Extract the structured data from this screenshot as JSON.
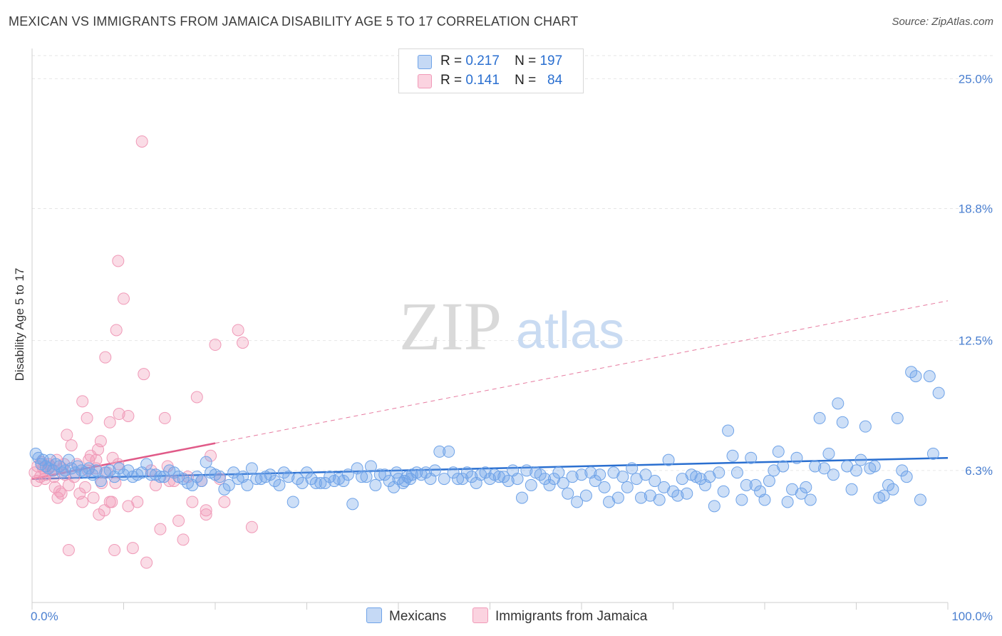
{
  "title": "MEXICAN VS IMMIGRANTS FROM JAMAICA DISABILITY AGE 5 TO 17 CORRELATION CHART",
  "source": "Source: ZipAtlas.com",
  "watermark": {
    "zip": "ZIP",
    "atlas": "atlas"
  },
  "legend": {
    "rows": [
      {
        "r_label": "R =",
        "r_value": "0.217",
        "n_label": "N =",
        "n_value": "197",
        "color": "#6fa3e8"
      },
      {
        "r_label": "R =",
        "r_value": "0.141",
        "n_label": "N =",
        "n_value": "84",
        "color": "#f09ab8"
      }
    ]
  },
  "bottom_legend": {
    "items": [
      {
        "label": "Mexicans",
        "color": "#6fa3e8"
      },
      {
        "label": "Immigrants from Jamaica",
        "color": "#f09ab8"
      }
    ]
  },
  "chart_data": {
    "type": "scatter",
    "title": "MEXICAN VS IMMIGRANTS FROM JAMAICA DISABILITY AGE 5 TO 17 CORRELATION CHART",
    "xlabel": "",
    "ylabel": "Disability Age 5 to 17",
    "xlim": [
      0,
      100
    ],
    "ylim": [
      0,
      26.1
    ],
    "x_tick_labels": [
      "0.0%",
      "100.0%"
    ],
    "y_ticks": [
      6.3,
      12.5,
      18.8,
      25.0
    ],
    "y_tick_labels": [
      "6.3%",
      "12.5%",
      "18.8%",
      "25.0%"
    ],
    "grid": "horizontal dashed",
    "legend_position": "top-center",
    "series": [
      {
        "name": "Mexicans",
        "color": "#6fa3e8",
        "trend": {
          "x": [
            0,
            100
          ],
          "y": [
            5.9,
            6.9
          ],
          "style": "solid",
          "color": "#2a6fd0"
        },
        "points": [
          [
            0.4,
            7.1
          ],
          [
            0.7,
            6.9
          ],
          [
            1.0,
            6.6
          ],
          [
            1.2,
            6.8
          ],
          [
            1.5,
            6.5
          ],
          [
            1.8,
            6.4
          ],
          [
            2.0,
            6.8
          ],
          [
            2.3,
            6.3
          ],
          [
            2.6,
            6.6
          ],
          [
            3.0,
            6.5
          ],
          [
            3.3,
            6.2
          ],
          [
            3.6,
            6.3
          ],
          [
            4.0,
            6.8
          ],
          [
            4.3,
            6.4
          ],
          [
            4.7,
            6.2
          ],
          [
            5.0,
            6.5
          ],
          [
            5.4,
            6.3
          ],
          [
            5.8,
            6.2
          ],
          [
            6.2,
            6.4
          ],
          [
            6.6,
            6.1
          ],
          [
            7.0,
            6.3
          ],
          [
            7.5,
            5.8
          ],
          [
            8.0,
            6.2
          ],
          [
            8.5,
            6.3
          ],
          [
            9.0,
            6.0
          ],
          [
            9.5,
            6.4
          ],
          [
            10.0,
            6.1
          ],
          [
            10.5,
            6.3
          ],
          [
            11.0,
            6.0
          ],
          [
            11.5,
            6.1
          ],
          [
            12.0,
            6.2
          ],
          [
            12.5,
            6.6
          ],
          [
            13.0,
            6.1
          ],
          [
            13.5,
            6.1
          ],
          [
            14.0,
            6.0
          ],
          [
            14.4,
            6.0
          ],
          [
            15.0,
            6.3
          ],
          [
            15.5,
            6.2
          ],
          [
            16.0,
            6.0
          ],
          [
            16.5,
            5.9
          ],
          [
            17.0,
            5.7
          ],
          [
            17.5,
            5.6
          ],
          [
            18.0,
            6.0
          ],
          [
            18.5,
            5.8
          ],
          [
            19.0,
            6.7
          ],
          [
            19.5,
            6.2
          ],
          [
            20.0,
            6.1
          ],
          [
            20.5,
            6.0
          ],
          [
            21.0,
            5.4
          ],
          [
            21.5,
            5.6
          ],
          [
            22.0,
            6.2
          ],
          [
            22.5,
            5.9
          ],
          [
            23.0,
            6.0
          ],
          [
            23.5,
            5.6
          ],
          [
            24.0,
            6.4
          ],
          [
            24.5,
            5.9
          ],
          [
            25.0,
            5.9
          ],
          [
            25.5,
            6.0
          ],
          [
            26.0,
            6.1
          ],
          [
            26.5,
            5.8
          ],
          [
            27.0,
            5.6
          ],
          [
            27.5,
            6.2
          ],
          [
            28.0,
            6.0
          ],
          [
            28.5,
            4.8
          ],
          [
            29.0,
            5.9
          ],
          [
            29.5,
            5.7
          ],
          [
            30.0,
            6.2
          ],
          [
            30.5,
            5.9
          ],
          [
            31.0,
            5.7
          ],
          [
            31.5,
            5.7
          ],
          [
            32.0,
            5.7
          ],
          [
            32.5,
            6.0
          ],
          [
            33.0,
            5.8
          ],
          [
            33.5,
            5.9
          ],
          [
            34.0,
            5.8
          ],
          [
            34.5,
            6.1
          ],
          [
            35.0,
            4.7
          ],
          [
            35.5,
            6.4
          ],
          [
            36.0,
            6.0
          ],
          [
            36.5,
            6.0
          ],
          [
            37.0,
            6.5
          ],
          [
            37.5,
            5.6
          ],
          [
            38.0,
            6.1
          ],
          [
            38.5,
            6.1
          ],
          [
            39.0,
            5.8
          ],
          [
            39.5,
            5.5
          ],
          [
            40.0,
            5.9
          ],
          [
            40.5,
            5.7
          ],
          [
            41.0,
            6.0
          ],
          [
            41.5,
            6.1
          ],
          [
            42.0,
            6.2
          ],
          [
            42.5,
            6.1
          ],
          [
            39.8,
            6.2
          ],
          [
            40.7,
            5.8
          ],
          [
            41.3,
            5.9
          ],
          [
            43.0,
            6.2
          ],
          [
            43.5,
            5.9
          ],
          [
            44.0,
            6.3
          ],
          [
            44.5,
            7.2
          ],
          [
            45.0,
            5.9
          ],
          [
            45.5,
            7.2
          ],
          [
            46.0,
            6.2
          ],
          [
            46.5,
            5.9
          ],
          [
            47.0,
            5.9
          ],
          [
            47.5,
            6.2
          ],
          [
            48.0,
            6.0
          ],
          [
            48.5,
            5.7
          ],
          [
            49.0,
            6.1
          ],
          [
            49.5,
            6.2
          ],
          [
            50.0,
            5.9
          ],
          [
            50.5,
            6.1
          ],
          [
            51.0,
            6.0
          ],
          [
            51.5,
            6.0
          ],
          [
            52.0,
            5.8
          ],
          [
            52.5,
            6.3
          ],
          [
            53.0,
            5.9
          ],
          [
            53.5,
            5.0
          ],
          [
            54.0,
            6.3
          ],
          [
            54.5,
            5.6
          ],
          [
            55.0,
            6.2
          ],
          [
            55.5,
            6.1
          ],
          [
            56.0,
            5.9
          ],
          [
            56.5,
            5.6
          ],
          [
            57.0,
            5.9
          ],
          [
            57.5,
            6.2
          ],
          [
            58.0,
            5.7
          ],
          [
            58.5,
            5.2
          ],
          [
            59.0,
            6.0
          ],
          [
            59.5,
            4.8
          ],
          [
            60.0,
            6.1
          ],
          [
            60.5,
            5.1
          ],
          [
            61.0,
            6.2
          ],
          [
            61.5,
            5.8
          ],
          [
            62.0,
            6.1
          ],
          [
            62.5,
            5.5
          ],
          [
            63.0,
            4.8
          ],
          [
            63.5,
            6.2
          ],
          [
            64.0,
            5.0
          ],
          [
            64.5,
            6.0
          ],
          [
            65.0,
            5.5
          ],
          [
            65.5,
            6.4
          ],
          [
            66.0,
            5.9
          ],
          [
            66.5,
            5.0
          ],
          [
            67.0,
            6.1
          ],
          [
            67.5,
            5.1
          ],
          [
            68.0,
            5.8
          ],
          [
            68.5,
            4.9
          ],
          [
            69.0,
            5.5
          ],
          [
            69.5,
            6.8
          ],
          [
            70.0,
            5.3
          ],
          [
            70.5,
            5.1
          ],
          [
            71.0,
            5.9
          ],
          [
            71.5,
            5.2
          ],
          [
            72.0,
            6.1
          ],
          [
            72.5,
            6.0
          ],
          [
            73.0,
            5.9
          ],
          [
            73.5,
            5.6
          ],
          [
            74.0,
            6.0
          ],
          [
            74.5,
            4.6
          ],
          [
            75.0,
            6.2
          ],
          [
            75.5,
            5.3
          ],
          [
            76.0,
            8.2
          ],
          [
            76.5,
            7.0
          ],
          [
            77.0,
            6.2
          ],
          [
            77.5,
            4.9
          ],
          [
            78.0,
            5.6
          ],
          [
            78.5,
            6.9
          ],
          [
            79.0,
            5.6
          ],
          [
            79.5,
            5.3
          ],
          [
            80.0,
            4.9
          ],
          [
            80.5,
            5.8
          ],
          [
            81.0,
            6.3
          ],
          [
            81.5,
            7.2
          ],
          [
            82.0,
            6.5
          ],
          [
            82.5,
            4.8
          ],
          [
            83.0,
            5.4
          ],
          [
            83.5,
            6.9
          ],
          [
            84.0,
            5.2
          ],
          [
            84.5,
            5.5
          ],
          [
            85.0,
            4.9
          ],
          [
            85.5,
            6.5
          ],
          [
            86.0,
            8.8
          ],
          [
            86.5,
            6.4
          ],
          [
            87.0,
            7.1
          ],
          [
            87.5,
            6.1
          ],
          [
            88.0,
            9.5
          ],
          [
            88.5,
            8.6
          ],
          [
            89.0,
            6.5
          ],
          [
            89.5,
            5.4
          ],
          [
            90.0,
            6.3
          ],
          [
            90.5,
            6.8
          ],
          [
            91.0,
            8.4
          ],
          [
            91.5,
            6.4
          ],
          [
            92.0,
            6.5
          ],
          [
            92.5,
            5.0
          ],
          [
            93.0,
            5.1
          ],
          [
            93.5,
            5.6
          ],
          [
            94.0,
            5.4
          ],
          [
            94.5,
            8.8
          ],
          [
            95.0,
            6.3
          ],
          [
            95.5,
            6.0
          ],
          [
            96.0,
            11.0
          ],
          [
            96.5,
            10.8
          ],
          [
            97.0,
            4.9
          ],
          [
            98.0,
            10.8
          ],
          [
            98.4,
            7.1
          ],
          [
            99.0,
            10.0
          ]
        ]
      },
      {
        "name": "Immigrants from Jamaica",
        "color": "#f09ab8",
        "trend": {
          "x": [
            0,
            20,
            100
          ],
          "y": [
            5.9,
            7.6,
            14.4
          ],
          "style": "solid to 20, dashed after",
          "color": "#e05a88"
        },
        "points": [
          [
            0.3,
            6.2
          ],
          [
            0.6,
            6.5
          ],
          [
            0.9,
            6.0
          ],
          [
            1.2,
            6.4
          ],
          [
            1.5,
            6.1
          ],
          [
            1.8,
            6.6
          ],
          [
            2.1,
            6.3
          ],
          [
            2.4,
            6.0
          ],
          [
            2.7,
            6.8
          ],
          [
            3.0,
            5.3
          ],
          [
            3.3,
            6.4
          ],
          [
            3.6,
            6.1
          ],
          [
            0.5,
            5.8
          ],
          [
            1.0,
            6.7
          ],
          [
            1.4,
            5.9
          ],
          [
            2.0,
            6.5
          ],
          [
            2.5,
            5.5
          ],
          [
            2.8,
            5.0
          ],
          [
            3.2,
            5.2
          ],
          [
            3.5,
            6.6
          ],
          [
            3.8,
            8.0
          ],
          [
            4.0,
            5.6
          ],
          [
            4.3,
            7.5
          ],
          [
            4.6,
            6.0
          ],
          [
            4.9,
            6.6
          ],
          [
            5.2,
            5.2
          ],
          [
            5.5,
            4.8
          ],
          [
            5.8,
            5.5
          ],
          [
            6.1,
            6.3
          ],
          [
            6.4,
            7.0
          ],
          [
            6.7,
            5.0
          ],
          [
            7.0,
            6.8
          ],
          [
            7.3,
            4.2
          ],
          [
            7.6,
            5.7
          ],
          [
            7.9,
            4.4
          ],
          [
            8.2,
            6.2
          ],
          [
            8.5,
            4.8
          ],
          [
            8.8,
            6.9
          ],
          [
            9.1,
            5.7
          ],
          [
            9.4,
            6.6
          ],
          [
            4.0,
            2.5
          ],
          [
            5.5,
            9.6
          ],
          [
            6.0,
            8.8
          ],
          [
            6.2,
            6.8
          ],
          [
            7.0,
            6.4
          ],
          [
            7.5,
            7.7
          ],
          [
            8.0,
            11.7
          ],
          [
            8.5,
            8.6
          ],
          [
            9.2,
            13.0
          ],
          [
            9.4,
            16.3
          ],
          [
            9.5,
            9.0
          ],
          [
            10.0,
            14.5
          ],
          [
            10.5,
            8.9
          ],
          [
            11.0,
            2.6
          ],
          [
            12.0,
            22.0
          ],
          [
            12.2,
            10.9
          ],
          [
            13.0,
            6.3
          ],
          [
            14.0,
            3.5
          ],
          [
            14.5,
            8.8
          ],
          [
            15.0,
            5.8
          ],
          [
            16.0,
            3.9
          ],
          [
            16.5,
            3.0
          ],
          [
            17.0,
            6.0
          ],
          [
            18.0,
            9.8
          ],
          [
            18.5,
            5.8
          ],
          [
            19.0,
            4.4
          ],
          [
            19.5,
            7.0
          ],
          [
            20.0,
            12.3
          ],
          [
            21.0,
            4.8
          ],
          [
            22.5,
            13.0
          ],
          [
            23.0,
            12.4
          ],
          [
            24.0,
            3.6
          ],
          [
            12.5,
            1.9
          ],
          [
            9.0,
            2.5
          ],
          [
            10.5,
            4.6
          ],
          [
            11.5,
            4.8
          ],
          [
            13.5,
            5.6
          ],
          [
            14.8,
            6.5
          ],
          [
            15.5,
            5.8
          ],
          [
            17.5,
            4.8
          ],
          [
            19.0,
            4.2
          ],
          [
            20.5,
            5.9
          ],
          [
            8.7,
            4.8
          ],
          [
            7.2,
            7.3
          ]
        ]
      }
    ]
  }
}
